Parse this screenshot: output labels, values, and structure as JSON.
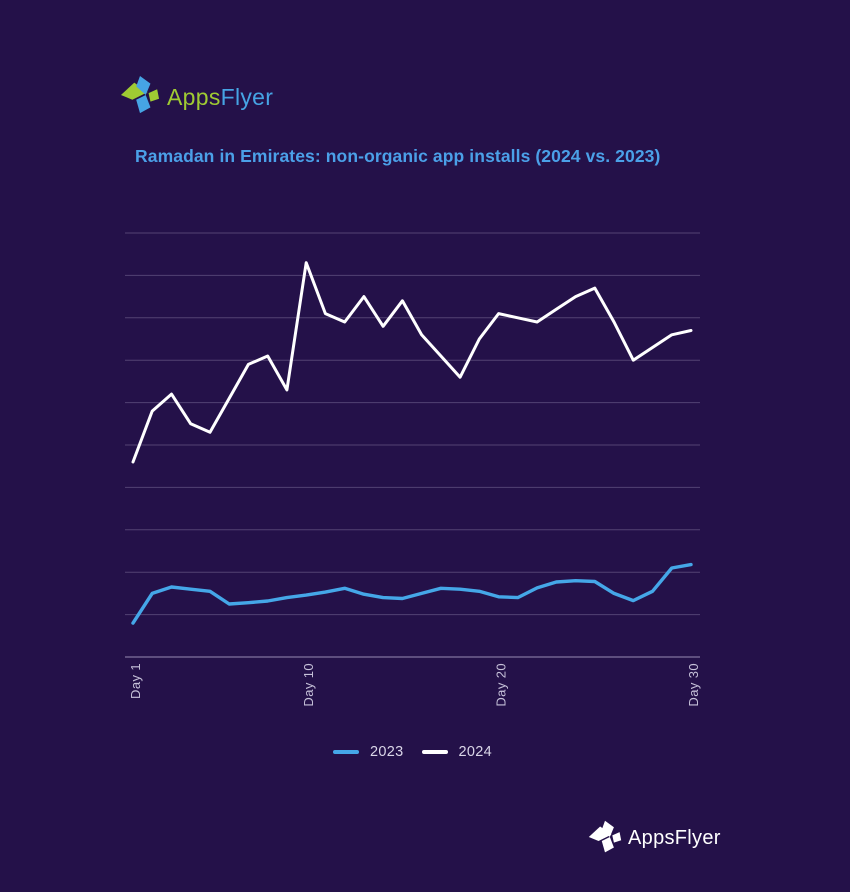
{
  "page": {
    "background": "#241149"
  },
  "brand": {
    "name_part1": "Apps",
    "name_part2": "Flyer",
    "footer_name": "AppsFlyer",
    "colors": {
      "green": "#9FCB33",
      "blue": "#46A4E4",
      "white": "#FFFFFF"
    }
  },
  "title": {
    "text": "Ramadan in Emirates: non-organic app installs (2024 vs. 2023)",
    "color": "#4BA0E8"
  },
  "legend": {
    "items": [
      {
        "label": "2023",
        "color": "#45A7E8"
      },
      {
        "label": "2024",
        "color": "#FFFFFF"
      }
    ]
  },
  "chart_data": {
    "type": "line",
    "title": "Ramadan in Emirates: non-organic app installs (2024 vs. 2023)",
    "x": [
      1,
      2,
      3,
      4,
      5,
      6,
      7,
      8,
      9,
      10,
      11,
      12,
      13,
      14,
      15,
      16,
      17,
      18,
      19,
      20,
      21,
      22,
      23,
      24,
      25,
      26,
      27,
      28,
      29,
      30
    ],
    "x_tick_days": [
      1,
      10,
      20,
      30
    ],
    "x_tick_labels": [
      "Day 1",
      "Day 10",
      "Day 20",
      "Day 30"
    ],
    "xlabel": "",
    "ylabel": "",
    "y_axis": {
      "tick_labels_visible": false,
      "units": "relative non-organic installs (1 unit = 1 gridline interval, estimated)",
      "range": [
        0,
        10
      ],
      "gridlines": 11
    },
    "grid": "horizontal-only",
    "legend_position": "bottom-center",
    "series": [
      {
        "name": "2023",
        "color": "#45A7E8",
        "values": [
          0.8,
          1.5,
          1.65,
          1.6,
          1.55,
          1.25,
          1.28,
          1.32,
          1.4,
          1.46,
          1.53,
          1.62,
          1.48,
          1.4,
          1.38,
          1.5,
          1.62,
          1.6,
          1.55,
          1.42,
          1.4,
          1.63,
          1.77,
          1.8,
          1.78,
          1.5,
          1.33,
          1.55,
          2.1,
          2.18
        ]
      },
      {
        "name": "2024",
        "color": "#FFFFFF",
        "values": [
          4.6,
          5.8,
          6.2,
          5.5,
          5.3,
          6.1,
          6.9,
          7.1,
          6.3,
          9.3,
          8.1,
          7.9,
          8.5,
          7.8,
          8.4,
          7.6,
          7.1,
          6.6,
          7.5,
          8.1,
          8.0,
          7.9,
          8.2,
          8.5,
          8.7,
          7.9,
          7.0,
          7.3,
          7.6,
          7.7
        ]
      }
    ]
  }
}
